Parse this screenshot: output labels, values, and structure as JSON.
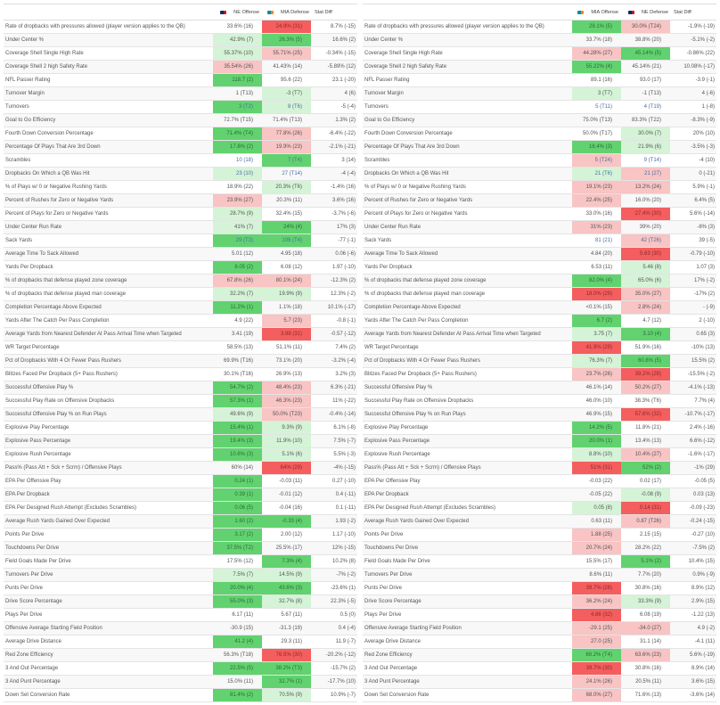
{
  "colors": {
    "strong_good": "#61d26f",
    "good": "#d5f3d7",
    "strong_bad": "#f45e5e",
    "bad": "#f8c4c4"
  },
  "metrics": [
    "Rate of dropbacks with pressures allowed (player version applies to the QB)",
    "Under Center %",
    "Coverage Shell Single High Rate",
    "Coverage Shell 2 high Safety Rate",
    "NFL Passer Rating",
    "Turnover Margin",
    "Turnovers",
    "Goal to Go Efficiency",
    "Fourth Down Conversion Percentage",
    "Percentage Of Plays That Are 3rd Down",
    "Scrambles",
    "Dropbacks On Which a QB Was Hit",
    "% of Plays w/ 0 or Negative Rushing Yards",
    "Percent of Rushes for Zero or Negative Yards",
    "Percent of Plays for Zero or Negative Yards",
    "Under Center Run Rate",
    "Sack Yards",
    "Average Time To Sack Allowed",
    "Yards Per Dropback",
    "% of dropbacks that defense played zone coverage",
    "% of dropbacks that defense played man coverage",
    "Completion Percentage Above Expected",
    "Yards After The Catch Per Pass Completion",
    "Average Yards from Nearest Defender At Pass Arrival Time when Targeted",
    "WR Target Percentage",
    "Pct of Dropbacks With 4 Or Fewer Pass Rushers",
    "Blitzes Faced Per Dropback (5+ Pass Rushers)",
    "Successful Offensive Play %",
    "Successful Play Rate on Offensive Dropbacks",
    "Successful Offensive Play % on Run Plays",
    "Explosive Play Percentage",
    "Explosive Pass Percentage",
    "Explosive Rush Percentage",
    "Pass% (Pass Att + Sck + Scrm) / Offensive Plays",
    "EPA Per Offensive Play",
    "EPA Per Dropback",
    "EPA Per Designed Rush Attempt (Excludes Scrambles)",
    "Average Rush Yards Gained Over Expected",
    "Points Per Drive",
    "Touchdowns Per Drive",
    "Field Goals Made Per Drive",
    "Turnovers Per Drive",
    "Punts Per Drive",
    "Drive Score Percentage",
    "Plays Per Drive",
    "Offensive Average Starting Field Position",
    "Average Drive Distance",
    "Red Zone Efficiency",
    "3 And Out Percentage",
    "3 And Punt Percentage",
    "Down Set Conversion Rate"
  ],
  "tables": [
    {
      "offense_header": "NE Offense",
      "offense_logo": "patriots-logo",
      "defense_header": "MIA Defense",
      "defense_logo": "dolphins-logo",
      "diff_header": "Stat Diff",
      "rows": [
        [
          "33.6% (16)",
          "",
          "24.9% (31)",
          "R",
          "8.7% (-15)"
        ],
        [
          "42.9% (7)",
          "g",
          "26.3% (5)",
          "G",
          "16.6% (2)"
        ],
        [
          "55.37% (10)",
          "g",
          "55.71% (25)",
          "r",
          "-0.34% (-15)"
        ],
        [
          "35.54% (26)",
          "r",
          "41.43% (14)",
          "",
          "-5.89% (12)"
        ],
        [
          "118.7 (2)",
          "G",
          "95.6 (22)",
          "",
          "23.1 (-20)"
        ],
        [
          "1 (T13)",
          "",
          "-3 (T7)",
          "g",
          "4 (6)"
        ],
        [
          "3 (T2)",
          "G",
          "8 (T6)",
          "g",
          "-5 (-4)"
        ],
        [
          "72.7% (T15)",
          "",
          "71.4% (T13)",
          "",
          "1.3% (2)"
        ],
        [
          "71.4% (T4)",
          "G",
          "77.8% (26)",
          "r",
          "-6.4% (-22)"
        ],
        [
          "17.8% (2)",
          "G",
          "19.9% (23)",
          "r",
          "-2.1% (-21)"
        ],
        [
          "10 (18)",
          "",
          "7 (T4)",
          "G",
          "3 (14)"
        ],
        [
          "23 (10)",
          "g",
          "27 (T14)",
          "",
          "-4 (-4)"
        ],
        [
          "18.9% (22)",
          "",
          "20.3% (T6)",
          "g",
          "-1.4% (16)"
        ],
        [
          "23.9% (27)",
          "r",
          "20.3% (11)",
          "",
          "3.6% (16)"
        ],
        [
          "28.7% (9)",
          "g",
          "32.4% (15)",
          "",
          "-3.7% (-6)"
        ],
        [
          "41% (7)",
          "g",
          "24% (4)",
          "G",
          "17% (3)"
        ],
        [
          "29 (T3)",
          "G",
          "106 (T4)",
          "G",
          "-77 (-1)"
        ],
        [
          "5.01 (12)",
          "",
          "4.95 (18)",
          "",
          "0.06 (-6)"
        ],
        [
          "8.05 (2)",
          "G",
          "6.08 (12)",
          "",
          "1.97 (-10)"
        ],
        [
          "67.8% (26)",
          "r",
          "80.1% (24)",
          "r",
          "-12.3% (2)"
        ],
        [
          "32.2% (7)",
          "g",
          "19.9% (9)",
          "g",
          "12.3% (-2)"
        ],
        [
          "11.2% (1)",
          "G",
          "1.1% (18)",
          "",
          "10.1% (-17)"
        ],
        [
          "4.9 (22)",
          "",
          "5.7 (23)",
          "r",
          "-0.8 (-1)"
        ],
        [
          "3.41 (19)",
          "",
          "3.98 (31)",
          "R",
          "-0.57 (-12)"
        ],
        [
          "58.5% (13)",
          "",
          "51.1% (11)",
          "",
          "7.4% (2)"
        ],
        [
          "69.9% (T16)",
          "",
          "73.1% (20)",
          "",
          "-3.2% (-4)"
        ],
        [
          "30.1% (T16)",
          "",
          "26.9% (13)",
          "",
          "3.2% (3)"
        ],
        [
          "54.7% (2)",
          "G",
          "48.4% (23)",
          "r",
          "6.3% (-21)"
        ],
        [
          "57.3% (1)",
          "G",
          "46.3% (23)",
          "r",
          "11% (-22)"
        ],
        [
          "49.6% (9)",
          "g",
          "50.0% (T23)",
          "r",
          "-0.4% (-14)"
        ],
        [
          "15.4% (1)",
          "G",
          "9.3% (9)",
          "g",
          "6.1% (-8)"
        ],
        [
          "19.4% (3)",
          "G",
          "11.9% (10)",
          "g",
          "7.5% (-7)"
        ],
        [
          "10.6% (3)",
          "G",
          "5.1% (6)",
          "g",
          "5.5% (-3)"
        ],
        [
          "60% (14)",
          "",
          "64% (29)",
          "R",
          "-4% (-15)"
        ],
        [
          "0.24 (1)",
          "G",
          "-0.03 (11)",
          "",
          "0.27 (-10)"
        ],
        [
          "0.39 (1)",
          "G",
          "-0.01 (12)",
          "",
          "0.4 (-11)"
        ],
        [
          "0.06 (5)",
          "G",
          "-0.04 (16)",
          "",
          "0.1 (-11)"
        ],
        [
          "1.60 (2)",
          "G",
          "-0.33 (4)",
          "G",
          "1.93 (-2)"
        ],
        [
          "3.17 (2)",
          "G",
          "2.00 (12)",
          "",
          "1.17 (-10)"
        ],
        [
          "37.5% (T2)",
          "G",
          "25.5% (17)",
          "",
          "12% (-15)"
        ],
        [
          "17.5% (12)",
          "",
          "7.3% (4)",
          "G",
          "10.2% (8)"
        ],
        [
          "7.5% (7)",
          "g",
          "14.5% (9)",
          "g",
          "-7% (-2)"
        ],
        [
          "20.0% (4)",
          "G",
          "43.6% (3)",
          "G",
          "-23.6% (1)"
        ],
        [
          "55.0% (3)",
          "G",
          "32.7% (8)",
          "g",
          "22.3% (-5)"
        ],
        [
          "6.17 (11)",
          "",
          "5.67 (11)",
          "",
          "0.5 (0)"
        ],
        [
          "-30.9 (15)",
          "",
          "-31.3 (19)",
          "",
          "0.4 (-4)"
        ],
        [
          "41.2 (4)",
          "G",
          "29.3 (11)",
          "",
          "11.9 (-7)"
        ],
        [
          "56.3% (T18)",
          "",
          "76.5% (30)",
          "R",
          "-20.2% (-12)"
        ],
        [
          "22.5% (5)",
          "G",
          "38.2% (T3)",
          "G",
          "-15.7% (2)"
        ],
        [
          "15.0% (11)",
          "",
          "32.7% (1)",
          "G",
          "-17.7% (10)"
        ],
        [
          "81.4% (2)",
          "G",
          "70.5% (9)",
          "g",
          "10.9% (-7)"
        ]
      ]
    },
    {
      "offense_header": "MIA Offense",
      "offense_logo": "dolphins-logo",
      "defense_header": "NE Defense",
      "defense_logo": "patriots-logo",
      "diff_header": "Stat Diff",
      "rows": [
        [
          "28.1% (5)",
          "G",
          "30.0% (T24)",
          "r",
          "-1.9% (-19)"
        ],
        [
          "33.7% (18)",
          "",
          "38.8% (20)",
          "",
          "-5.1% (-2)"
        ],
        [
          "44.28% (27)",
          "r",
          "45.14% (5)",
          "G",
          "-0.86% (22)"
        ],
        [
          "55.22% (4)",
          "G",
          "45.14% (21)",
          "",
          "10.08% (-17)"
        ],
        [
          "89.1 (16)",
          "",
          "93.0 (17)",
          "",
          "-3.9 (-1)"
        ],
        [
          "3 (T7)",
          "g",
          "-1 (T13)",
          "",
          "4 (-6)"
        ],
        [
          "5 (T11)",
          "",
          "4 (T19)",
          "",
          "1 (-8)"
        ],
        [
          "75.0% (T13)",
          "",
          "83.3% (T22)",
          "",
          "-8.3% (-9)"
        ],
        [
          "50.0% (T17)",
          "",
          "30.0% (7)",
          "g",
          "20% (10)"
        ],
        [
          "18.4% (3)",
          "G",
          "21.9% (6)",
          "g",
          "-3.5% (-3)"
        ],
        [
          "5 (T24)",
          "r",
          "9 (T14)",
          "",
          "-4 (10)"
        ],
        [
          "21 (T6)",
          "g",
          "21 (27)",
          "r",
          "0 (-21)"
        ],
        [
          "19.1% (23)",
          "r",
          "13.2% (24)",
          "r",
          "5.9% (-1)"
        ],
        [
          "22.4% (25)",
          "r",
          "16.0% (20)",
          "",
          "6.4% (5)"
        ],
        [
          "33.0% (16)",
          "",
          "27.4% (30)",
          "R",
          "5.6% (-14)"
        ],
        [
          "31% (23)",
          "r",
          "39% (20)",
          "",
          "-8% (3)"
        ],
        [
          "81 (21)",
          "",
          "42 (T26)",
          "r",
          "39 (-5)"
        ],
        [
          "4.84 (20)",
          "",
          "5.63 (30)",
          "R",
          "-0.79 (-10)"
        ],
        [
          "6.53 (11)",
          "",
          "5.46 (8)",
          "g",
          "1.07 (3)"
        ],
        [
          "82.0% (4)",
          "G",
          "65.0% (6)",
          "g",
          "17% (-2)"
        ],
        [
          "18.0% (29)",
          "R",
          "35.0% (27)",
          "r",
          "-17% (2)"
        ],
        [
          "<0.1% (15)",
          "",
          "2.8% (24)",
          "r",
          "- (-9)"
        ],
        [
          "6.7 (2)",
          "G",
          "4.7 (12)",
          "",
          "2 (-10)"
        ],
        [
          "3.75 (7)",
          "g",
          "3.10 (4)",
          "G",
          "0.65 (3)"
        ],
        [
          "41.9% (29)",
          "R",
          "51.9% (16)",
          "",
          "-10% (13)"
        ],
        [
          "76.3% (7)",
          "g",
          "60.8% (5)",
          "G",
          "15.5% (2)"
        ],
        [
          "23.7% (26)",
          "r",
          "39.2% (28)",
          "R",
          "-15.5% (-2)"
        ],
        [
          "46.1% (14)",
          "",
          "50.2% (27)",
          "r",
          "-4.1% (-13)"
        ],
        [
          "46.0% (10)",
          "",
          "38.3% (T6)",
          "",
          "7.7% (4)"
        ],
        [
          "46.9% (15)",
          "",
          "57.6% (32)",
          "R",
          "-10.7% (-17)"
        ],
        [
          "14.2% (5)",
          "G",
          "11.8% (21)",
          "",
          "2.4% (-16)"
        ],
        [
          "20.0% (1)",
          "G",
          "13.4% (13)",
          "",
          "6.6% (-12)"
        ],
        [
          "8.8% (10)",
          "g",
          "10.4% (27)",
          "r",
          "-1.6% (-17)"
        ],
        [
          "51% (31)",
          "R",
          "52% (2)",
          "G",
          "-1% (29)"
        ],
        [
          "-0.03 (22)",
          "",
          "0.02 (17)",
          "",
          "-0.05 (5)"
        ],
        [
          "-0.05 (22)",
          "",
          "-0.08 (9)",
          "g",
          "0.03 (13)"
        ],
        [
          "0.05 (8)",
          "g",
          "0.14 (31)",
          "R",
          "-0.09 (-23)"
        ],
        [
          "0.63 (11)",
          "",
          "0.87 (T26)",
          "r",
          "-0.24 (-15)"
        ],
        [
          "1.88 (25)",
          "r",
          "2.15 (15)",
          "",
          "-0.27 (10)"
        ],
        [
          "20.7% (24)",
          "r",
          "28.2% (22)",
          "",
          "-7.5% (2)"
        ],
        [
          "15.5% (17)",
          "",
          "5.1% (2)",
          "G",
          "10.4% (15)"
        ],
        [
          "8.6% (11)",
          "",
          "7.7% (20)",
          "",
          "0.9% (-9)"
        ],
        [
          "39.7% (28)",
          "R",
          "30.8% (16)",
          "",
          "8.9% (12)"
        ],
        [
          "36.2% (24)",
          "r",
          "33.3% (9)",
          "g",
          "2.9% (15)"
        ],
        [
          "4.86 (32)",
          "R",
          "6.08 (19)",
          "",
          "-1.22 (13)"
        ],
        [
          "-29.1 (25)",
          "r",
          "-34.0 (27)",
          "r",
          "4.9 (-2)"
        ],
        [
          "27.0 (25)",
          "r",
          "31.1 (14)",
          "",
          "-4.1 (11)"
        ],
        [
          "69.2% (T4)",
          "G",
          "63.6% (23)",
          "r",
          "5.6% (-19)"
        ],
        [
          "39.7% (30)",
          "R",
          "30.8% (16)",
          "",
          "8.9% (14)"
        ],
        [
          "24.1% (26)",
          "r",
          "20.5% (11)",
          "",
          "3.6% (15)"
        ],
        [
          "68.0% (27)",
          "r",
          "71.6% (13)",
          "",
          "-3.6% (14)"
        ]
      ]
    }
  ]
}
